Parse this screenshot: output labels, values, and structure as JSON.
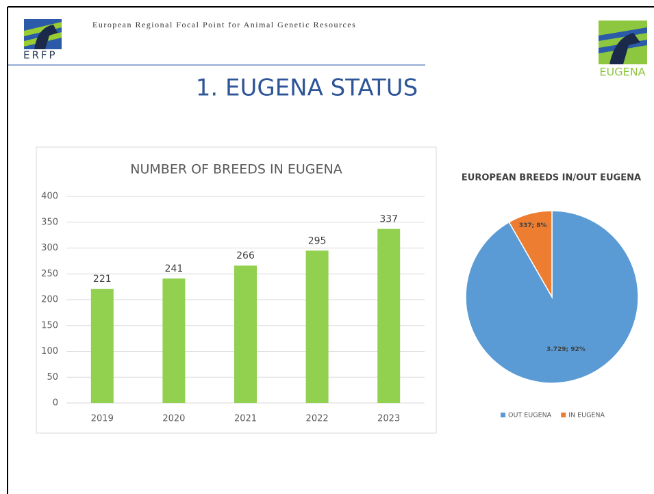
{
  "header": {
    "subtitle": "European Regional Focal Point for Animal Genetic Resources",
    "logo_left": "ERFP",
    "logo_right": "EUGENA",
    "title": "1. EUGENA STATUS"
  },
  "chart_data": [
    {
      "type": "bar",
      "title": "NUMBER OF BREEDS IN EUGENA",
      "categories": [
        "2019",
        "2020",
        "2021",
        "2022",
        "2023"
      ],
      "values": [
        221,
        241,
        266,
        295,
        337
      ],
      "color": "#92d050",
      "ylim": [
        0,
        400
      ],
      "yticks": [
        0,
        50,
        100,
        150,
        200,
        250,
        300,
        350,
        400
      ],
      "grid": true
    },
    {
      "type": "pie",
      "title": "EUROPEAN BREEDS IN/OUT EUGENA",
      "categories": [
        "OUT EUGENA",
        "IN EUGENA"
      ],
      "values": [
        3729,
        337
      ],
      "value_labels": [
        "3.729; 92%",
        "337; 8%"
      ],
      "colors": [
        "#5b9bd5",
        "#ed7d31"
      ],
      "legend": "bottom"
    }
  ]
}
